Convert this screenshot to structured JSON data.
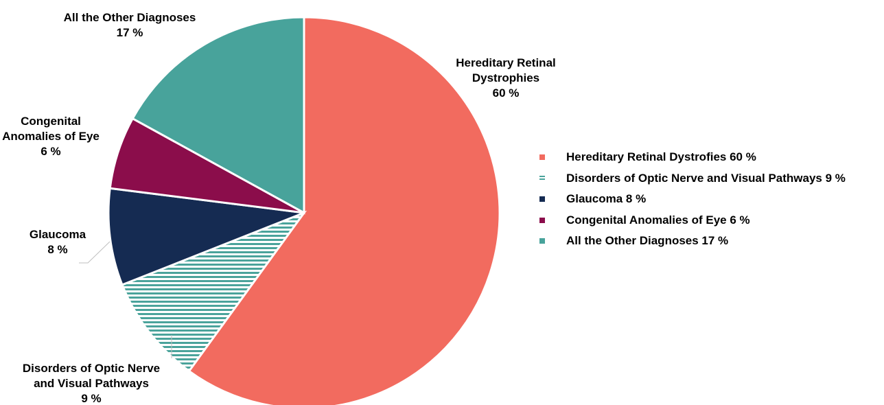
{
  "chart_data": {
    "type": "pie",
    "slices": [
      {
        "name": "Hereditary Retinal Dystrophies",
        "value": 60,
        "color": "#f26b5f",
        "pattern": "solid",
        "label_lines": [
          "Hereditary Retinal",
          "Dystrophies",
          "60 %"
        ]
      },
      {
        "name": "Disorders of Optic Nerve and Visual Pathways",
        "value": 9,
        "color": "#4aa39b",
        "pattern": "horizontal-stripes",
        "label_lines": [
          "Disorders of Optic Nerve",
          "and Visual Pathways",
          "9 %"
        ]
      },
      {
        "name": "Glaucoma",
        "value": 8,
        "color": "#152b52",
        "pattern": "solid",
        "label_lines": [
          "Glaucoma",
          "8 %"
        ]
      },
      {
        "name": "Congenital Anomalies of Eye",
        "value": 6,
        "color": "#8b0d4b",
        "pattern": "solid",
        "label_lines": [
          "Congenital",
          "Anomalies of Eye",
          "6 %"
        ]
      },
      {
        "name": "All the Other Diagnoses",
        "value": 17,
        "color": "#48a39b",
        "pattern": "solid",
        "label_lines": [
          "All the Other Diagnoses",
          "17 %"
        ]
      }
    ],
    "legend": [
      {
        "text": "Hereditary Retinal Dystrofies 60 %",
        "color": "#f26b5f",
        "pattern": "solid"
      },
      {
        "text": "Disorders of Optic Nerve and Visual Pathways 9 %",
        "color": "#4aa39b",
        "pattern": "horizontal-stripes"
      },
      {
        "text": "Glaucoma 8 %",
        "color": "#152b52",
        "pattern": "solid"
      },
      {
        "text": "Congenital Anomalies of Eye 6 %",
        "color": "#8b0d4b",
        "pattern": "solid"
      },
      {
        "text": "All the Other Diagnoses 17 %",
        "color": "#48a39b",
        "pattern": "solid"
      }
    ],
    "legend_position": "right",
    "start_angle": "12 o'clock",
    "direction": "clockwise"
  }
}
